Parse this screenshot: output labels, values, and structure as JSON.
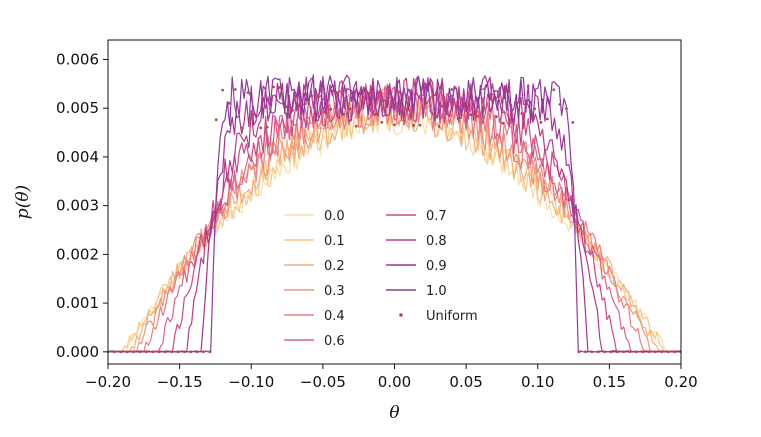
{
  "chart_data": {
    "type": "line",
    "title": "",
    "xlabel": "θ",
    "ylabel": "p(θ)",
    "xlim": [
      -0.2,
      0.2
    ],
    "ylim": [
      -0.00025,
      0.0064
    ],
    "xticks": [
      -0.2,
      -0.15,
      -0.1,
      -0.05,
      0.0,
      0.05,
      0.1,
      0.15,
      0.2
    ],
    "xtick_labels": [
      "−0.20",
      "−0.15",
      "−0.10",
      "−0.05",
      "0.00",
      "0.05",
      "0.10",
      "0.15",
      "0.20"
    ],
    "yticks": [
      0.0,
      0.001,
      0.002,
      0.003,
      0.004,
      0.005,
      0.006
    ],
    "ytick_labels": [
      "0.000",
      "0.001",
      "0.002",
      "0.003",
      "0.004",
      "0.005",
      "0.006"
    ],
    "grid": false,
    "legend_position": "bottom-center",
    "legend_columns": 2,
    "uniform_support": [
      -0.125,
      0.125
    ],
    "uniform_density": 0.005,
    "series": [
      {
        "name": "0.0",
        "color": "#f9dfa6",
        "profile": {
          "plateau": 0.0048,
          "half_width": 0.19,
          "power": 1.8,
          "noise": 0.00025,
          "seed": 11
        }
      },
      {
        "name": "0.1",
        "color": "#f8c687",
        "profile": {
          "plateau": 0.0049,
          "half_width": 0.19,
          "power": 1.8,
          "noise": 0.00027,
          "seed": 23
        }
      },
      {
        "name": "0.2",
        "color": "#f6ad7b",
        "profile": {
          "plateau": 0.0049,
          "half_width": 0.185,
          "power": 2.0,
          "noise": 0.00028,
          "seed": 37
        }
      },
      {
        "name": "0.3",
        "color": "#f29679",
        "profile": {
          "plateau": 0.005,
          "half_width": 0.18,
          "power": 2.2,
          "noise": 0.0003,
          "seed": 41
        }
      },
      {
        "name": "0.4",
        "color": "#ec7e80",
        "profile": {
          "plateau": 0.005,
          "half_width": 0.175,
          "power": 2.5,
          "noise": 0.0003,
          "seed": 53
        }
      },
      {
        "name": "0.6",
        "color": "#e06086",
        "profile": {
          "plateau": 0.0051,
          "half_width": 0.165,
          "power": 3.0,
          "noise": 0.0003,
          "seed": 67
        }
      },
      {
        "name": "0.7",
        "color": "#cc4a88",
        "profile": {
          "plateau": 0.0051,
          "half_width": 0.155,
          "power": 4.0,
          "noise": 0.00032,
          "seed": 71
        }
      },
      {
        "name": "0.8",
        "color": "#bb3a86",
        "profile": {
          "plateau": 0.0052,
          "half_width": 0.145,
          "power": 6.0,
          "noise": 0.00033,
          "seed": 83
        }
      },
      {
        "name": "0.9",
        "color": "#a23493",
        "profile": {
          "plateau": 0.0052,
          "half_width": 0.135,
          "power": 12.0,
          "noise": 0.00034,
          "seed": 97
        }
      },
      {
        "name": "1.0",
        "color": "#8e3a9e",
        "profile": {
          "plateau": 0.0052,
          "half_width": 0.128,
          "power": 40.0,
          "noise": 0.00035,
          "seed": 101
        }
      }
    ],
    "scatter_series": {
      "name": "Uniform",
      "color": "#b24a4a"
    }
  }
}
